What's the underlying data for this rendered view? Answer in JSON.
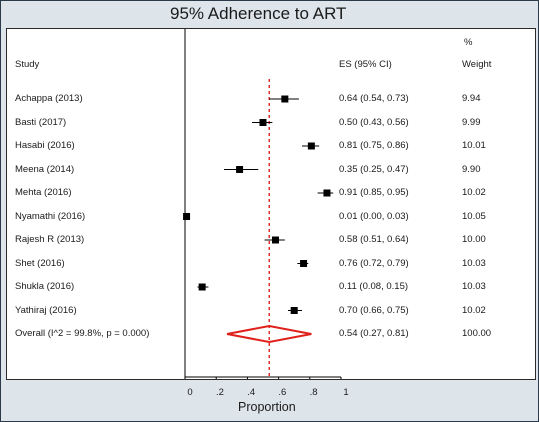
{
  "chart_data": {
    "type": "forest",
    "title": "95% Adherence to ART",
    "xlabel": "Proportion",
    "headers": {
      "study": "Study",
      "es": "ES (95% CI)",
      "weight_pct": "%",
      "weight": "Weight"
    },
    "xlim": [
      0,
      1
    ],
    "xticks": [
      "0",
      ".2",
      ".4",
      ".6",
      ".8",
      "1"
    ],
    "pooled_line": 0.54,
    "studies": [
      {
        "name": "Achappa (2013)",
        "es": 0.64,
        "lo": 0.54,
        "hi": 0.73,
        "ci_text": "0.64 (0.54, 0.73)",
        "weight": 9.94,
        "weight_text": "9.94"
      },
      {
        "name": "Basti (2017)",
        "es": 0.5,
        "lo": 0.43,
        "hi": 0.56,
        "ci_text": "0.50 (0.43, 0.56)",
        "weight": 9.99,
        "weight_text": "9.99"
      },
      {
        "name": "Hasabi (2016)",
        "es": 0.81,
        "lo": 0.75,
        "hi": 0.86,
        "ci_text": "0.81 (0.75, 0.86)",
        "weight": 10.01,
        "weight_text": "10.01"
      },
      {
        "name": "Meena (2014)",
        "es": 0.35,
        "lo": 0.25,
        "hi": 0.47,
        "ci_text": "0.35 (0.25, 0.47)",
        "weight": 9.9,
        "weight_text": "9.90"
      },
      {
        "name": "Mehta (2016)",
        "es": 0.91,
        "lo": 0.85,
        "hi": 0.95,
        "ci_text": "0.91 (0.85, 0.95)",
        "weight": 10.02,
        "weight_text": "10.02"
      },
      {
        "name": "Nyamathi (2016)",
        "es": 0.01,
        "lo": 0.0,
        "hi": 0.03,
        "ci_text": "0.01 (0.00, 0.03)",
        "weight": 10.05,
        "weight_text": "10.05"
      },
      {
        "name": "Rajesh R (2013)",
        "es": 0.58,
        "lo": 0.51,
        "hi": 0.64,
        "ci_text": "0.58 (0.51, 0.64)",
        "weight": 10.0,
        "weight_text": "10.00"
      },
      {
        "name": "Shet (2016)",
        "es": 0.76,
        "lo": 0.72,
        "hi": 0.79,
        "ci_text": "0.76 (0.72, 0.79)",
        "weight": 10.03,
        "weight_text": "10.03"
      },
      {
        "name": "Shukla (2016)",
        "es": 0.11,
        "lo": 0.08,
        "hi": 0.15,
        "ci_text": "0.11 (0.08, 0.15)",
        "weight": 10.03,
        "weight_text": "10.03"
      },
      {
        "name": "Yathiraj (2016)",
        "es": 0.7,
        "lo": 0.66,
        "hi": 0.75,
        "ci_text": "0.70 (0.66, 0.75)",
        "weight": 10.02,
        "weight_text": "10.02"
      }
    ],
    "overall": {
      "label": "Overall  (I^2 = 99.8%, p = 0.000)",
      "es": 0.54,
      "lo": 0.27,
      "hi": 0.81,
      "ci_text": "0.54 (0.27, 0.81)",
      "weight_text": "100.00"
    },
    "colors": {
      "marker": "#000000",
      "diamond": "#e0201b",
      "pooled_line": "#e0201b",
      "background": "#dde4ea",
      "panel": "#ffffff"
    }
  }
}
